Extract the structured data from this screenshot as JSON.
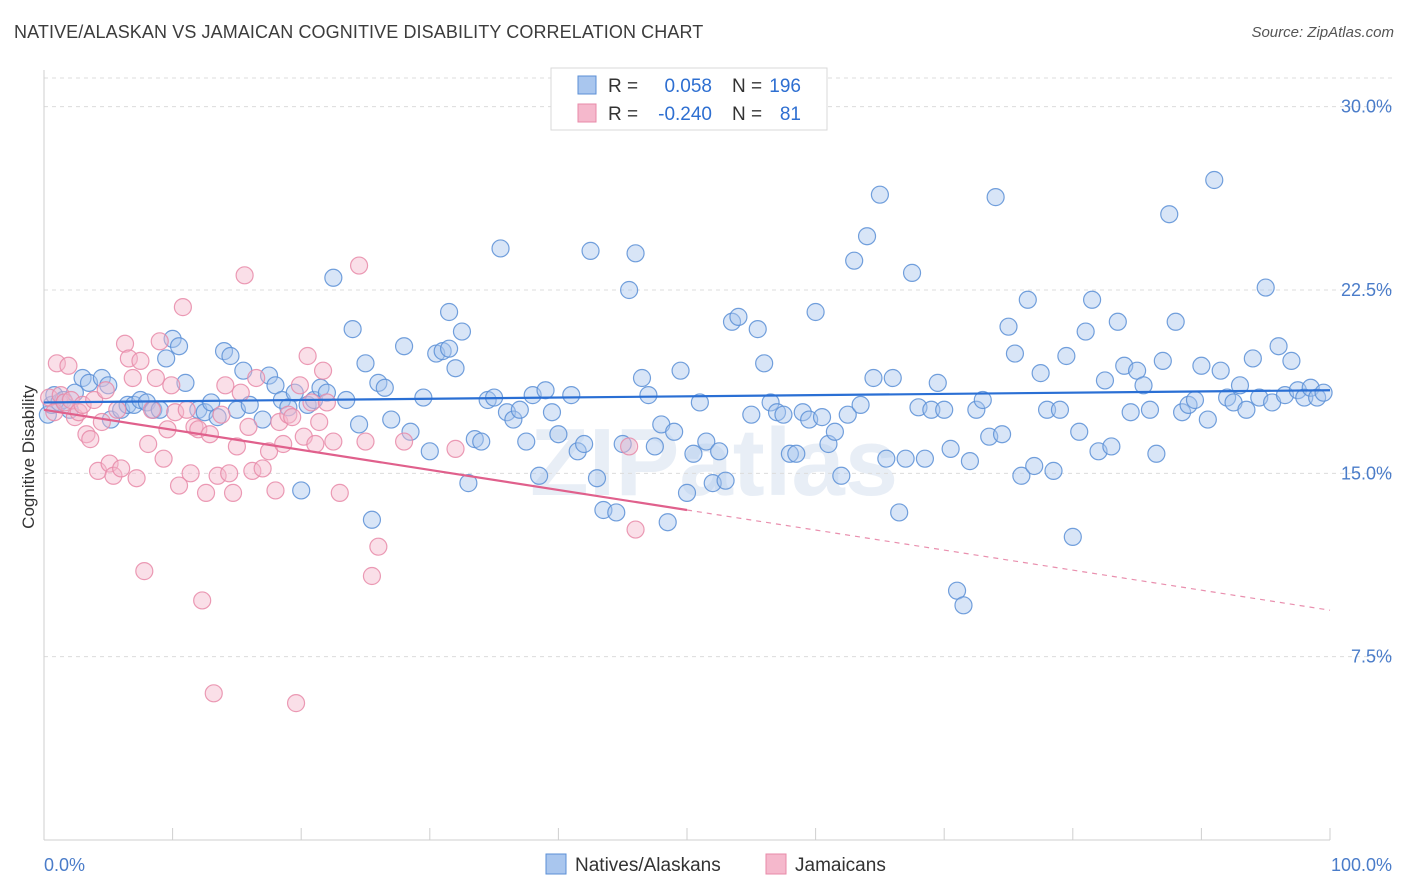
{
  "title": "NATIVE/ALASKAN VS JAMAICAN COGNITIVE DISABILITY CORRELATION CHART",
  "source": "Source: ZipAtlas.com",
  "watermark": "ZIPatlas",
  "colors": {
    "blue_fill": "#a9c6ee",
    "blue_stroke": "#5b8fd6",
    "blue_line": "#2a6fd4",
    "pink_fill": "#f5b8cc",
    "pink_stroke": "#e88aa8",
    "pink_line": "#e0608c",
    "tick_text": "#4a7cc9",
    "grid": "#dcdcdc"
  },
  "legend": {
    "rows": [
      {
        "r_label": "R =",
        "r_value": "0.058",
        "n_label": "N =",
        "n_value": "196",
        "swatch": "blue"
      },
      {
        "r_label": "R =",
        "r_value": "-0.240",
        "n_label": "N =",
        "n_value": "81",
        "swatch": "pink"
      }
    ]
  },
  "bottom_legend": [
    {
      "label": "Natives/Alaskans",
      "swatch": "blue"
    },
    {
      "label": "Jamaicans",
      "swatch": "pink"
    }
  ],
  "chart_data": {
    "type": "scatter",
    "xlabel": "",
    "ylabel": "Cognitive Disability",
    "xlim": [
      0,
      100
    ],
    "ylim": [
      0,
      31.5
    ],
    "x_tick_labels": [
      "0.0%",
      "100.0%"
    ],
    "y_ticks": [
      7.5,
      15.0,
      22.5,
      30.0
    ],
    "y_tick_labels": [
      "7.5%",
      "15.0%",
      "22.5%",
      "30.0%"
    ],
    "grid": true,
    "legend_position": "top-center",
    "series": [
      {
        "name": "Natives/Alaskans",
        "color": "blue",
        "trend": {
          "x": [
            0,
            100
          ],
          "y": [
            17.9,
            18.4
          ],
          "solid_until": 100
        },
        "points": [
          [
            0.3,
            17.4
          ],
          [
            0.6,
            17.8
          ],
          [
            0.8,
            18.2
          ],
          [
            1.2,
            17.9
          ],
          [
            1.5,
            18.0
          ],
          [
            2.0,
            17.6
          ],
          [
            2.4,
            18.3
          ],
          [
            3.0,
            18.9
          ],
          [
            3.5,
            18.7
          ],
          [
            4.5,
            18.9
          ],
          [
            5.0,
            18.6
          ],
          [
            5.2,
            17.2
          ],
          [
            6.0,
            17.6
          ],
          [
            6.5,
            17.8
          ],
          [
            7.0,
            17.8
          ],
          [
            7.5,
            18.0
          ],
          [
            8.0,
            17.9
          ],
          [
            8.5,
            17.6
          ],
          [
            9.0,
            17.6
          ],
          [
            9.5,
            19.7
          ],
          [
            10.0,
            20.5
          ],
          [
            10.5,
            20.2
          ],
          [
            11.0,
            18.7
          ],
          [
            12.0,
            17.6
          ],
          [
            12.5,
            17.5
          ],
          [
            13.0,
            17.9
          ],
          [
            13.5,
            17.3
          ],
          [
            14.0,
            20.0
          ],
          [
            14.5,
            19.8
          ],
          [
            15.0,
            17.6
          ],
          [
            15.5,
            19.2
          ],
          [
            16.0,
            17.8
          ],
          [
            17.0,
            17.2
          ],
          [
            17.5,
            19.0
          ],
          [
            18.0,
            18.6
          ],
          [
            18.5,
            18.0
          ],
          [
            19.0,
            17.7
          ],
          [
            19.5,
            18.3
          ],
          [
            20.0,
            14.3
          ],
          [
            20.5,
            17.8
          ],
          [
            21.0,
            18.0
          ],
          [
            21.5,
            18.5
          ],
          [
            22.0,
            18.3
          ],
          [
            22.5,
            23.0
          ],
          [
            23.5,
            18.0
          ],
          [
            24.0,
            20.9
          ],
          [
            24.5,
            17.0
          ],
          [
            25.0,
            19.5
          ],
          [
            25.5,
            13.1
          ],
          [
            26.0,
            18.7
          ],
          [
            26.5,
            18.5
          ],
          [
            27.0,
            17.2
          ],
          [
            28.0,
            20.2
          ],
          [
            28.5,
            16.7
          ],
          [
            29.5,
            18.1
          ],
          [
            30.0,
            15.9
          ],
          [
            30.5,
            19.9
          ],
          [
            31.0,
            20.0
          ],
          [
            31.5,
            21.6
          ],
          [
            31.5,
            20.1
          ],
          [
            32.0,
            19.3
          ],
          [
            32.5,
            20.8
          ],
          [
            33.0,
            14.6
          ],
          [
            33.5,
            16.4
          ],
          [
            34.0,
            16.3
          ],
          [
            34.5,
            18.0
          ],
          [
            35.0,
            18.1
          ],
          [
            35.5,
            24.2
          ],
          [
            36.0,
            17.5
          ],
          [
            36.5,
            17.2
          ],
          [
            37.0,
            17.6
          ],
          [
            37.5,
            16.3
          ],
          [
            38.0,
            18.2
          ],
          [
            38.5,
            14.9
          ],
          [
            39.0,
            18.4
          ],
          [
            39.5,
            17.5
          ],
          [
            40.0,
            16.6
          ],
          [
            41.0,
            18.2
          ],
          [
            41.5,
            15.9
          ],
          [
            42.0,
            16.2
          ],
          [
            42.5,
            24.1
          ],
          [
            43.0,
            14.8
          ],
          [
            43.5,
            13.5
          ],
          [
            44.5,
            13.4
          ],
          [
            45.0,
            16.2
          ],
          [
            45.5,
            22.5
          ],
          [
            46.0,
            24.0
          ],
          [
            46.5,
            18.9
          ],
          [
            47.0,
            18.2
          ],
          [
            47.5,
            16.1
          ],
          [
            48.0,
            17.0
          ],
          [
            48.5,
            13.0
          ],
          [
            49.0,
            16.7
          ],
          [
            49.5,
            19.2
          ],
          [
            50.0,
            14.2
          ],
          [
            50.5,
            15.8
          ],
          [
            51.0,
            17.9
          ],
          [
            51.5,
            16.3
          ],
          [
            52.0,
            14.6
          ],
          [
            52.5,
            15.9
          ],
          [
            53.0,
            14.7
          ],
          [
            53.5,
            21.2
          ],
          [
            54.0,
            21.4
          ],
          [
            55.0,
            17.4
          ],
          [
            55.5,
            20.9
          ],
          [
            56.0,
            19.5
          ],
          [
            56.5,
            17.9
          ],
          [
            57.0,
            17.5
          ],
          [
            57.5,
            17.4
          ],
          [
            58.0,
            15.8
          ],
          [
            58.5,
            15.8
          ],
          [
            59.0,
            17.5
          ],
          [
            59.5,
            17.2
          ],
          [
            60.0,
            21.6
          ],
          [
            60.5,
            17.3
          ],
          [
            61.0,
            16.2
          ],
          [
            61.5,
            16.7
          ],
          [
            62.0,
            14.9
          ],
          [
            62.5,
            17.4
          ],
          [
            63.0,
            23.7
          ],
          [
            63.5,
            17.8
          ],
          [
            64.0,
            24.7
          ],
          [
            64.5,
            18.9
          ],
          [
            65.0,
            26.4
          ],
          [
            65.5,
            15.6
          ],
          [
            66.0,
            18.9
          ],
          [
            66.5,
            13.4
          ],
          [
            67.0,
            15.6
          ],
          [
            67.5,
            23.2
          ],
          [
            68.0,
            17.7
          ],
          [
            68.5,
            15.6
          ],
          [
            69.0,
            17.6
          ],
          [
            69.5,
            18.7
          ],
          [
            70.0,
            17.6
          ],
          [
            70.5,
            16.0
          ],
          [
            71.0,
            10.2
          ],
          [
            71.5,
            9.6
          ],
          [
            72.0,
            15.5
          ],
          [
            72.5,
            17.6
          ],
          [
            73.0,
            18.0
          ],
          [
            73.5,
            16.5
          ],
          [
            74.0,
            26.3
          ],
          [
            74.5,
            16.6
          ],
          [
            75.0,
            21.0
          ],
          [
            75.5,
            19.9
          ],
          [
            76.0,
            14.9
          ],
          [
            76.5,
            22.1
          ],
          [
            77.0,
            15.3
          ],
          [
            77.5,
            19.1
          ],
          [
            78.0,
            17.6
          ],
          [
            78.5,
            15.1
          ],
          [
            79.0,
            17.6
          ],
          [
            79.5,
            19.8
          ],
          [
            80.0,
            12.4
          ],
          [
            80.5,
            16.7
          ],
          [
            81.0,
            20.8
          ],
          [
            81.5,
            22.1
          ],
          [
            82.0,
            15.9
          ],
          [
            82.5,
            18.8
          ],
          [
            83.0,
            16.1
          ],
          [
            83.5,
            21.2
          ],
          [
            84.0,
            19.4
          ],
          [
            84.5,
            17.5
          ],
          [
            85.0,
            19.2
          ],
          [
            85.5,
            18.6
          ],
          [
            86.0,
            17.6
          ],
          [
            86.5,
            15.8
          ],
          [
            87.0,
            19.6
          ],
          [
            87.5,
            25.6
          ],
          [
            88.0,
            21.2
          ],
          [
            88.5,
            17.5
          ],
          [
            89.0,
            17.8
          ],
          [
            89.5,
            18.0
          ],
          [
            90.0,
            19.4
          ],
          [
            90.5,
            17.2
          ],
          [
            91.0,
            27.0
          ],
          [
            91.5,
            19.2
          ],
          [
            92.0,
            18.1
          ],
          [
            92.5,
            17.9
          ],
          [
            93.0,
            18.6
          ],
          [
            93.5,
            17.6
          ],
          [
            94.0,
            19.7
          ],
          [
            94.5,
            18.1
          ],
          [
            95.0,
            22.6
          ],
          [
            95.5,
            17.9
          ],
          [
            96.0,
            20.2
          ],
          [
            96.5,
            18.2
          ],
          [
            97.0,
            19.6
          ],
          [
            97.5,
            18.4
          ],
          [
            98.0,
            18.1
          ],
          [
            98.5,
            18.5
          ],
          [
            99.0,
            18.1
          ],
          [
            99.5,
            18.3
          ]
        ]
      },
      {
        "name": "Jamaicans",
        "color": "pink",
        "trend": {
          "x": [
            0,
            100
          ],
          "y": [
            17.6,
            9.4
          ],
          "solid_until": 50
        },
        "points": [
          [
            0.4,
            18.1
          ],
          [
            0.8,
            17.5
          ],
          [
            1.0,
            19.5
          ],
          [
            1.3,
            18.2
          ],
          [
            1.6,
            17.9
          ],
          [
            1.9,
            19.4
          ],
          [
            2.1,
            18.0
          ],
          [
            2.4,
            17.3
          ],
          [
            2.7,
            17.5
          ],
          [
            3.0,
            17.8
          ],
          [
            3.3,
            16.6
          ],
          [
            3.6,
            16.4
          ],
          [
            3.9,
            18.0
          ],
          [
            4.2,
            15.1
          ],
          [
            4.5,
            17.1
          ],
          [
            4.8,
            18.4
          ],
          [
            5.1,
            15.4
          ],
          [
            5.4,
            14.9
          ],
          [
            5.7,
            17.6
          ],
          [
            6.0,
            15.2
          ],
          [
            6.3,
            20.3
          ],
          [
            6.6,
            19.7
          ],
          [
            6.9,
            18.9
          ],
          [
            7.2,
            14.8
          ],
          [
            7.5,
            19.6
          ],
          [
            7.8,
            11.0
          ],
          [
            8.1,
            16.2
          ],
          [
            8.4,
            17.6
          ],
          [
            8.7,
            18.9
          ],
          [
            9.0,
            20.4
          ],
          [
            9.3,
            15.6
          ],
          [
            9.6,
            16.8
          ],
          [
            9.9,
            18.6
          ],
          [
            10.2,
            17.5
          ],
          [
            10.5,
            14.5
          ],
          [
            10.8,
            21.8
          ],
          [
            11.1,
            17.6
          ],
          [
            11.4,
            15.0
          ],
          [
            11.7,
            16.9
          ],
          [
            12.0,
            16.8
          ],
          [
            12.3,
            9.8
          ],
          [
            12.6,
            14.2
          ],
          [
            12.9,
            16.6
          ],
          [
            13.2,
            6.0
          ],
          [
            13.5,
            14.9
          ],
          [
            13.8,
            17.4
          ],
          [
            14.1,
            18.6
          ],
          [
            14.4,
            15.0
          ],
          [
            14.7,
            14.2
          ],
          [
            15.0,
            16.1
          ],
          [
            15.3,
            18.3
          ],
          [
            15.6,
            23.1
          ],
          [
            15.9,
            16.9
          ],
          [
            16.2,
            15.1
          ],
          [
            16.5,
            18.9
          ],
          [
            17.0,
            15.2
          ],
          [
            17.5,
            15.9
          ],
          [
            18.0,
            14.3
          ],
          [
            18.3,
            17.1
          ],
          [
            18.6,
            16.2
          ],
          [
            19.0,
            17.4
          ],
          [
            19.3,
            17.3
          ],
          [
            19.6,
            5.6
          ],
          [
            19.9,
            18.6
          ],
          [
            20.2,
            16.5
          ],
          [
            20.5,
            19.8
          ],
          [
            20.8,
            17.9
          ],
          [
            21.1,
            16.2
          ],
          [
            21.4,
            17.1
          ],
          [
            21.7,
            19.2
          ],
          [
            22.0,
            17.9
          ],
          [
            22.5,
            16.3
          ],
          [
            23.0,
            14.2
          ],
          [
            24.5,
            23.5
          ],
          [
            25.0,
            16.3
          ],
          [
            25.5,
            10.8
          ],
          [
            26.0,
            12.0
          ],
          [
            28.0,
            16.3
          ],
          [
            32.0,
            16.0
          ],
          [
            45.5,
            16.1
          ],
          [
            46.0,
            12.7
          ]
        ]
      }
    ]
  }
}
